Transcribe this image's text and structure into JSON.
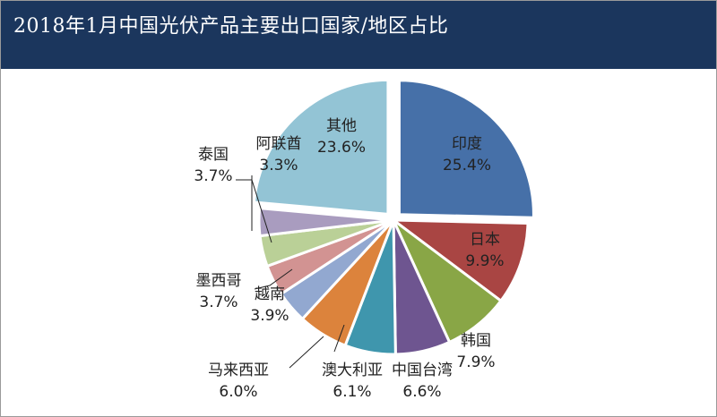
{
  "title": "2018年1月中国光伏产品主要出口国家/地区占比",
  "chart_data": {
    "type": "pie",
    "title": "2018年1月中国光伏产品主要出口国家/地区占比",
    "start_angle": "12 o'clock",
    "direction": "clockwise",
    "legend": "none (data labels)",
    "slices": [
      {
        "label": "印度",
        "value": 25.4,
        "text": "25.4%",
        "color": "#4670a8",
        "exploded": true
      },
      {
        "label": "日本",
        "value": 9.9,
        "text": "9.9%",
        "color": "#a94543"
      },
      {
        "label": "韩国",
        "value": 7.9,
        "text": "7.9%",
        "color": "#89a646"
      },
      {
        "label": "中国台湾",
        "value": 6.6,
        "text": "6.6%",
        "color": "#6e5590"
      },
      {
        "label": "澳大利亚",
        "value": 6.1,
        "text": "6.1%",
        "color": "#3f96ad"
      },
      {
        "label": "马来西亚",
        "value": 6.0,
        "text": "6.0%",
        "color": "#dc833c"
      },
      {
        "label": "越南",
        "value": 3.9,
        "text": "3.9%",
        "color": "#92a8d0"
      },
      {
        "label": "墨西哥",
        "value": 3.7,
        "text": "3.7%",
        "color": "#d29392"
      },
      {
        "label": "泰国",
        "value": 3.7,
        "text": "3.7%",
        "color": "#bad097"
      },
      {
        "label": "阿联酋",
        "value": 3.3,
        "text": "3.3%",
        "color": "#a99cbf"
      },
      {
        "label": "其他",
        "value": 23.6,
        "text": "23.6%",
        "color": "#93c4d5",
        "exploded": true
      }
    ]
  }
}
